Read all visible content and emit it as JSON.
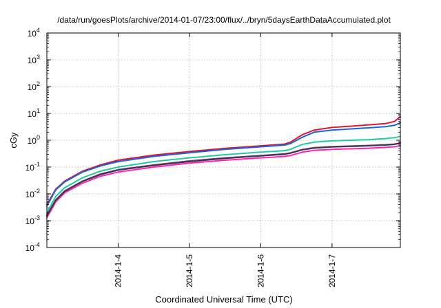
{
  "chart_data": {
    "type": "line",
    "title": "/data/run/goesPlots/archive/2014-01-07/23:00/flux/../bryn/5daysEarthDataAccumulated.plot",
    "xlabel": "Coordinated Universal Time (UTC)",
    "ylabel": "cGy",
    "x_ticks": [
      "2014-1-4",
      "2014-1-5",
      "2014-1-6",
      "2014-1-7"
    ],
    "y_scale": "log",
    "ylim": [
      0.0001,
      10000
    ],
    "xlim": [
      "2014-01-03T00:00",
      "2014-01-07T23:00"
    ],
    "y_ticks": [
      {
        "base": "10",
        "exp": "-4"
      },
      {
        "base": "10",
        "exp": "-3"
      },
      {
        "base": "10",
        "exp": "-2"
      },
      {
        "base": "10",
        "exp": "-1"
      },
      {
        "base": "10",
        "exp": "0"
      },
      {
        "base": "10",
        "exp": "1"
      },
      {
        "base": "10",
        "exp": "2"
      },
      {
        "base": "10",
        "exp": "3"
      },
      {
        "base": "10",
        "exp": "4"
      }
    ],
    "grid": true,
    "series": [
      {
        "color": "#e8112d",
        "x": [
          "2014-01-03T00:00",
          "2014-01-03T03:00",
          "2014-01-03T06:00",
          "2014-01-03T12:00",
          "2014-01-03T18:00",
          "2014-01-04T00:00",
          "2014-01-04T12:00",
          "2014-01-05T00:00",
          "2014-01-05T12:00",
          "2014-01-06T00:00",
          "2014-01-06T08:00",
          "2014-01-06T10:00",
          "2014-01-06T14:00",
          "2014-01-06T18:00",
          "2014-01-07T00:00",
          "2014-01-07T12:00",
          "2014-01-07T18:00",
          "2014-01-07T21:00",
          "2014-01-07T23:00"
        ],
        "y": [
          0.004,
          0.015,
          0.03,
          0.07,
          0.12,
          0.18,
          0.28,
          0.38,
          0.5,
          0.62,
          0.72,
          0.85,
          1.6,
          2.4,
          3.0,
          3.7,
          4.2,
          5.0,
          7.5
        ]
      },
      {
        "color": "#1565e0",
        "x": [
          "2014-01-03T00:00",
          "2014-01-03T03:00",
          "2014-01-03T06:00",
          "2014-01-03T12:00",
          "2014-01-03T18:00",
          "2014-01-04T00:00",
          "2014-01-04T12:00",
          "2014-01-05T00:00",
          "2014-01-05T12:00",
          "2014-01-06T00:00",
          "2014-01-06T08:00",
          "2014-01-06T10:00",
          "2014-01-06T14:00",
          "2014-01-06T18:00",
          "2014-01-07T00:00",
          "2014-01-07T12:00",
          "2014-01-07T18:00",
          "2014-01-07T21:00",
          "2014-01-07T23:00"
        ],
        "y": [
          0.0035,
          0.014,
          0.028,
          0.065,
          0.11,
          0.16,
          0.25,
          0.34,
          0.46,
          0.57,
          0.66,
          0.75,
          1.3,
          2.0,
          2.4,
          2.9,
          3.2,
          3.6,
          4.5
        ]
      },
      {
        "color": "#1ec8a0",
        "x": [
          "2014-01-03T00:00",
          "2014-01-03T03:00",
          "2014-01-03T06:00",
          "2014-01-03T12:00",
          "2014-01-03T18:00",
          "2014-01-04T00:00",
          "2014-01-04T12:00",
          "2014-01-05T00:00",
          "2014-01-05T12:00",
          "2014-01-06T00:00",
          "2014-01-06T08:00",
          "2014-01-06T10:00",
          "2014-01-06T14:00",
          "2014-01-06T18:00",
          "2014-01-07T00:00",
          "2014-01-07T12:00",
          "2014-01-07T18:00",
          "2014-01-07T21:00",
          "2014-01-07T23:00"
        ],
        "y": [
          0.002,
          0.008,
          0.017,
          0.04,
          0.07,
          0.1,
          0.16,
          0.22,
          0.29,
          0.36,
          0.41,
          0.46,
          0.7,
          0.85,
          0.95,
          1.05,
          1.15,
          1.25,
          1.4
        ]
      },
      {
        "color": "#8a3090",
        "x": [
          "2014-01-03T00:00",
          "2014-01-03T03:00",
          "2014-01-03T06:00",
          "2014-01-03T12:00",
          "2014-01-03T18:00",
          "2014-01-04T00:00",
          "2014-01-04T12:00",
          "2014-01-05T00:00",
          "2014-01-05T12:00",
          "2014-01-06T00:00",
          "2014-01-06T08:00",
          "2014-01-06T10:00",
          "2014-01-06T14:00",
          "2014-01-06T18:00",
          "2014-01-07T00:00",
          "2014-01-07T12:00",
          "2014-01-07T18:00",
          "2014-01-07T21:00",
          "2014-01-07T23:00"
        ],
        "y": [
          0.0016,
          0.006,
          0.013,
          0.03,
          0.055,
          0.08,
          0.12,
          0.17,
          0.22,
          0.27,
          0.31,
          0.34,
          0.45,
          0.53,
          0.58,
          0.64,
          0.68,
          0.72,
          0.8
        ]
      },
      {
        "color": "#ff1ec8",
        "x": [
          "2014-01-03T00:00",
          "2014-01-03T03:00",
          "2014-01-03T06:00",
          "2014-01-03T12:00",
          "2014-01-03T18:00",
          "2014-01-04T00:00",
          "2014-01-04T12:00",
          "2014-01-05T00:00",
          "2014-01-05T12:00",
          "2014-01-06T00:00",
          "2014-01-06T08:00",
          "2014-01-06T10:00",
          "2014-01-06T14:00",
          "2014-01-06T18:00",
          "2014-01-07T00:00",
          "2014-01-07T12:00",
          "2014-01-07T18:00",
          "2014-01-07T21:00",
          "2014-01-07T23:00"
        ],
        "y": [
          0.0013,
          0.005,
          0.011,
          0.025,
          0.045,
          0.065,
          0.1,
          0.14,
          0.18,
          0.22,
          0.25,
          0.27,
          0.36,
          0.42,
          0.46,
          0.5,
          0.54,
          0.57,
          0.63
        ]
      },
      {
        "color": "#3a3a3a",
        "x": [
          "2014-01-03T00:00",
          "2014-01-03T03:00",
          "2014-01-03T06:00",
          "2014-01-03T12:00",
          "2014-01-03T18:00",
          "2014-01-04T00:00",
          "2014-01-04T12:00",
          "2014-01-05T00:00",
          "2014-01-05T12:00",
          "2014-01-06T00:00",
          "2014-01-06T08:00",
          "2014-01-06T10:00",
          "2014-01-06T14:00",
          "2014-01-06T18:00",
          "2014-01-07T00:00",
          "2014-01-07T12:00",
          "2014-01-07T18:00",
          "2014-01-07T21:00",
          "2014-01-07T23:00"
        ],
        "y": [
          0.0015,
          0.0058,
          0.0125,
          0.029,
          0.052,
          0.077,
          0.115,
          0.16,
          0.21,
          0.26,
          0.3,
          0.33,
          0.44,
          0.51,
          0.56,
          0.62,
          0.66,
          0.7,
          0.78
        ]
      }
    ]
  }
}
